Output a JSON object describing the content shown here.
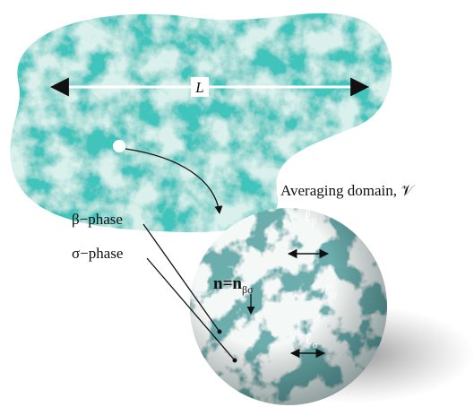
{
  "labels": {
    "length": "L",
    "averaging_domain": "Averaging domain, 𝒱",
    "beta_phase": "β−phase",
    "sigma_phase": "σ−phase",
    "normal": {
      "main": "n=n",
      "sub": "βσ"
    },
    "ell_beta": {
      "main": "ℓ",
      "sub": "β"
    },
    "ell_sigma": {
      "main": "ℓ",
      "sub": "σ"
    },
    "radius": {
      "main": "r",
      "sub": "0"
    }
  }
}
